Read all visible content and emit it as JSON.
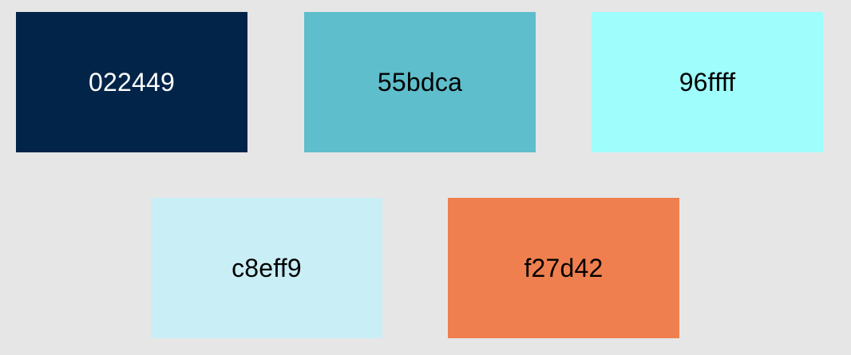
{
  "swatches": [
    {
      "label": "022449",
      "color": "#022449",
      "text_color": "#ffffff"
    },
    {
      "label": "55bdca",
      "color": "#5fbecb",
      "text_color": "#000000"
    },
    {
      "label": "96ffff",
      "color": "#9ffefc",
      "text_color": "#000000"
    },
    {
      "label": "c8eff9",
      "color": "#c9eef6",
      "text_color": "#000000"
    },
    {
      "label": "f27d42",
      "color": "#ef7f4e",
      "text_color": "#000000"
    }
  ],
  "background_color": "#e6e6e6"
}
